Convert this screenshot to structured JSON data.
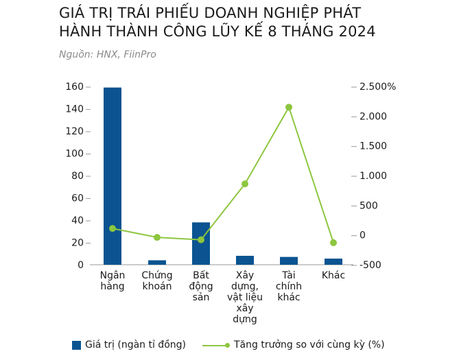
{
  "header": {
    "title_line1": "GIÁ TRỊ TRÁI PHIẾU DOANH NGHIỆP PHÁT",
    "title_line2": "HÀNH THÀNH CÔNG LŨY KẾ 8 THÁNG 2024",
    "source": "Nguồn: HNX, FiinPro"
  },
  "colors": {
    "bar": "#0B5491",
    "line": "#8DC63F",
    "axis": "#9a9a9a"
  },
  "legend": {
    "bar_label": "Giá trị (ngàn tỉ đồng)",
    "line_label": "Tăng trưởng so với cùng kỳ (%)"
  },
  "chart_data": {
    "type": "bar+line",
    "title": "GIÁ TRỊ TRÁI PHIẾU DOANH NGHIỆP PHÁT HÀNH THÀNH CÔNG LŨY KẾ 8 THÁNG 2024",
    "subtitle": "Nguồn: HNX, FiinPro",
    "categories": [
      [
        "Ngân",
        "hàng"
      ],
      [
        "Chứng",
        "khoán"
      ],
      [
        "Bất",
        "động",
        "sản"
      ],
      [
        "Xây",
        "dựng,",
        "vật liệu",
        "xây",
        "dựng"
      ],
      [
        "Tài",
        "chính",
        "khác"
      ],
      [
        "Khác"
      ]
    ],
    "category_names": [
      "Ngân hàng",
      "Chứng khoán",
      "Bất động sản",
      "Xây dựng, vật liệu xây dựng",
      "Tài chính khác",
      "Khác"
    ],
    "series": [
      {
        "name": "Giá trị (ngàn tỉ đồng)",
        "type": "bar",
        "axis": "left",
        "values": [
          159,
          4,
          38,
          8,
          7,
          5.5
        ]
      },
      {
        "name": "Tăng trưởng so với cùng kỳ (%)",
        "type": "line",
        "axis": "right",
        "values": [
          110,
          -40,
          -80,
          860,
          2150,
          -130
        ]
      }
    ],
    "left_axis": {
      "ylim": [
        0,
        160
      ],
      "ticks": [
        0,
        20,
        40,
        60,
        80,
        100,
        120,
        140,
        160
      ],
      "tick_labels": [
        "0",
        "20",
        "40",
        "60",
        "80",
        "100",
        "120",
        "140",
        "160"
      ]
    },
    "right_axis": {
      "ylim": [
        -500,
        2500
      ],
      "ticks": [
        -500,
        0,
        500,
        1000,
        1500,
        2000,
        2500
      ],
      "tick_labels": [
        "-500",
        "0",
        "500",
        "1.000",
        "1.500",
        "2.000",
        "2.500%"
      ]
    },
    "xlabel": "",
    "ylabel": "",
    "grid": false,
    "legend_position": "bottom"
  }
}
